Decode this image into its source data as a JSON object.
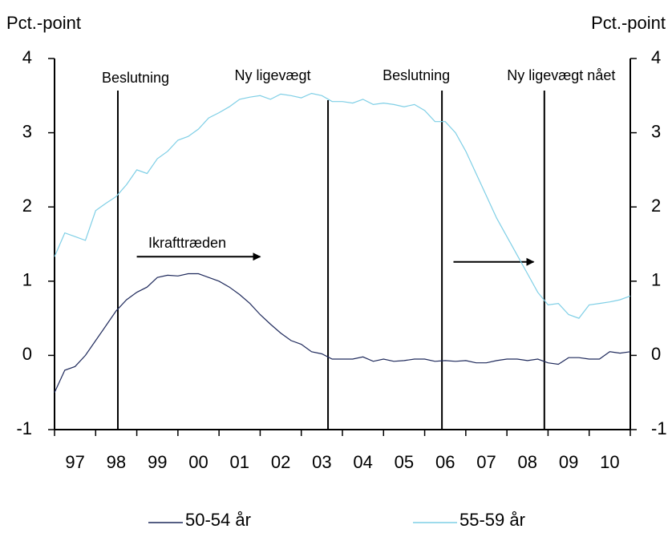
{
  "chart_data": {
    "type": "line",
    "ylabel": "Pct.-point",
    "y2label": "Pct.-point",
    "xlim": [
      1997,
      2011
    ],
    "xticks": [
      1997,
      1998,
      1999,
      2000,
      2001,
      2002,
      2003,
      2004,
      2005,
      2006,
      2007,
      2008,
      2009,
      2010,
      2011
    ],
    "xtick_labels": [
      {
        "value": 1997.5,
        "label": "97"
      },
      {
        "value": 1998.5,
        "label": "98"
      },
      {
        "value": 1999.5,
        "label": "99"
      },
      {
        "value": 2000.5,
        "label": "00"
      },
      {
        "value": 2001.5,
        "label": "01"
      },
      {
        "value": 2002.5,
        "label": "02"
      },
      {
        "value": 2003.5,
        "label": "03"
      },
      {
        "value": 2004.5,
        "label": "04"
      },
      {
        "value": 2005.5,
        "label": "05"
      },
      {
        "value": 2006.5,
        "label": "06"
      },
      {
        "value": 2007.5,
        "label": "07"
      },
      {
        "value": 2008.5,
        "label": "08"
      },
      {
        "value": 2009.5,
        "label": "09"
      },
      {
        "value": 2010.5,
        "label": "10"
      }
    ],
    "ylim": [
      -1,
      4
    ],
    "yticks": [
      -1,
      0,
      1,
      2,
      3,
      4
    ],
    "y2lim": [
      -1,
      4
    ],
    "y2ticks": [
      -1,
      0,
      1,
      2,
      3,
      4
    ],
    "x": [
      1997,
      1997.25,
      1997.5,
      1997.75,
      1998,
      1998.25,
      1998.5,
      1998.75,
      1999,
      1999.25,
      1999.5,
      1999.75,
      2000,
      2000.25,
      2000.5,
      2000.75,
      2001,
      2001.25,
      2001.5,
      2001.75,
      2002,
      2002.25,
      2002.5,
      2002.75,
      2003,
      2003.25,
      2003.5,
      2003.75,
      2004,
      2004.25,
      2004.5,
      2004.75,
      2005,
      2005.25,
      2005.5,
      2005.75,
      2006,
      2006.25,
      2006.5,
      2006.75,
      2007,
      2007.25,
      2007.5,
      2007.75,
      2008,
      2008.25,
      2008.5,
      2008.75,
      2009,
      2009.25,
      2009.5,
      2009.75,
      2010,
      2010.25,
      2010.5,
      2010.75,
      2011
    ],
    "series": [
      {
        "name": "50-54 år",
        "color": "#1f2a5c",
        "values": [
          -0.5,
          -0.2,
          -0.15,
          0.0,
          0.2,
          0.4,
          0.6,
          0.75,
          0.85,
          0.92,
          1.05,
          1.08,
          1.07,
          1.1,
          1.1,
          1.05,
          1.0,
          0.92,
          0.82,
          0.7,
          0.55,
          0.42,
          0.3,
          0.2,
          0.15,
          0.05,
          0.02,
          -0.05,
          -0.05,
          -0.05,
          -0.02,
          -0.08,
          -0.05,
          -0.08,
          -0.07,
          -0.05,
          -0.05,
          -0.08,
          -0.07,
          -0.08,
          -0.07,
          -0.1,
          -0.1,
          -0.07,
          -0.05,
          -0.05,
          -0.07,
          -0.05,
          -0.1,
          -0.12,
          -0.03,
          -0.03,
          -0.05,
          -0.05,
          0.05,
          0.03,
          0.05
        ]
      },
      {
        "name": "55-59 år",
        "color": "#7fcfe6",
        "values": [
          1.33,
          1.65,
          1.6,
          1.55,
          1.95,
          2.05,
          2.14,
          2.3,
          2.5,
          2.45,
          2.65,
          2.75,
          2.9,
          2.95,
          3.05,
          3.2,
          3.27,
          3.35,
          3.45,
          3.48,
          3.5,
          3.45,
          3.52,
          3.5,
          3.47,
          3.53,
          3.5,
          3.42,
          3.42,
          3.4,
          3.45,
          3.38,
          3.4,
          3.38,
          3.35,
          3.38,
          3.3,
          3.15,
          3.15,
          3.0,
          2.75,
          2.45,
          2.15,
          1.85,
          1.6,
          1.35,
          1.1,
          0.85,
          0.68,
          0.7,
          0.55,
          0.5,
          0.68,
          0.7,
          0.72,
          0.75,
          0.8
        ]
      }
    ],
    "events": [
      {
        "label": "Beslutning",
        "x": 1998.54
      },
      {
        "label": "Ny ligevægt",
        "x": 2003.65
      },
      {
        "label": "Beslutning",
        "x": 2006.42
      },
      {
        "label": "Ny ligevægt nået",
        "x": 2008.91
      }
    ],
    "arrows": [
      {
        "label": "Ikrafttræden",
        "x": [
          1999.0,
          2002.0
        ],
        "y": 1.33
      },
      {
        "x": [
          2006.7,
          2008.65
        ],
        "y": 1.26
      }
    ]
  }
}
